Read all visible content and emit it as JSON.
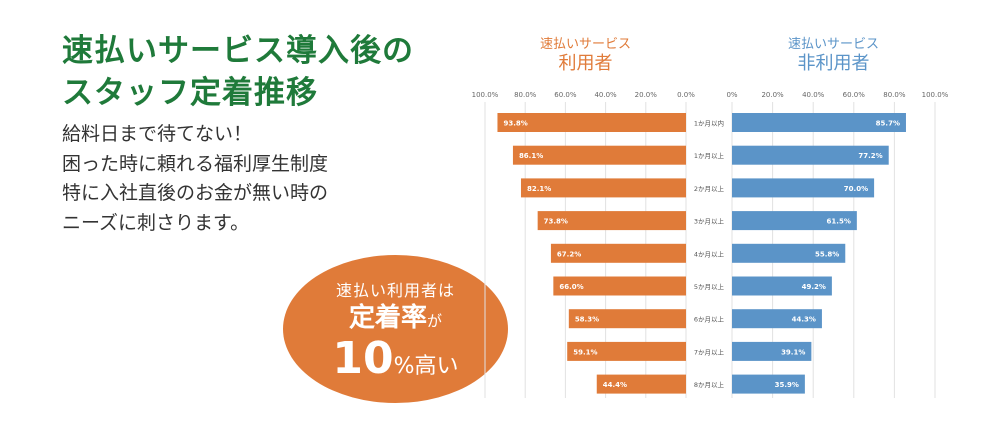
{
  "headline": {
    "line1": "速払いサービス導入後の",
    "line2": "スタッフ定着推移"
  },
  "description": {
    "line1": "給料日まで待てない！",
    "line2": "困った時に頼れる福利厚生制度",
    "line3": "特に入社直後のお金が無い時の",
    "line4": "ニーズに刺さります。"
  },
  "badge": {
    "line1": "速払い利用者は",
    "line2_main": "定着率",
    "line2_suffix": "が",
    "line3_number": "10",
    "line3_unit": "%高い"
  },
  "colors": {
    "title": "#1f7a3a",
    "users": "#e07b39",
    "non_users": "#5b94c8",
    "badge": "#e07b39"
  },
  "chart_data": {
    "type": "bar",
    "orientation": "horizontal-butterfly",
    "categories": [
      "1か月以内",
      "1か月以上",
      "2か月以上",
      "3か月以上",
      "4か月以上",
      "5か月以上",
      "6か月以上",
      "7か月以上",
      "8か月以上"
    ],
    "series": [
      {
        "name_line1": "速払いサービス",
        "name_line2": "利用者",
        "values": [
          93.8,
          86.1,
          82.1,
          73.8,
          67.2,
          66.0,
          58.3,
          59.1,
          44.4
        ],
        "labels": [
          "93.8%",
          "86.1%",
          "82.1%",
          "73.8%",
          "67.2%",
          "66.0%",
          "58.3%",
          "59.1%",
          "44.4%"
        ]
      },
      {
        "name_line1": "速払いサービス",
        "name_line2": "非利用者",
        "values": [
          85.7,
          77.2,
          70.0,
          61.5,
          55.8,
          49.2,
          44.3,
          39.1,
          35.9
        ],
        "labels": [
          "85.7%",
          "77.2%",
          "70.0%",
          "61.5%",
          "55.8%",
          "49.2%",
          "44.3%",
          "39.1%",
          "35.9%"
        ]
      }
    ],
    "left_ticks": [
      "100.0%",
      "80.0%",
      "60.0%",
      "40.0%",
      "20.0%",
      "0.0%"
    ],
    "right_ticks": [
      "0%",
      "20.0%",
      "40.0%",
      "60.0%",
      "80.0%",
      "100.0%"
    ],
    "xlim": [
      0,
      100
    ],
    "grid": true
  }
}
